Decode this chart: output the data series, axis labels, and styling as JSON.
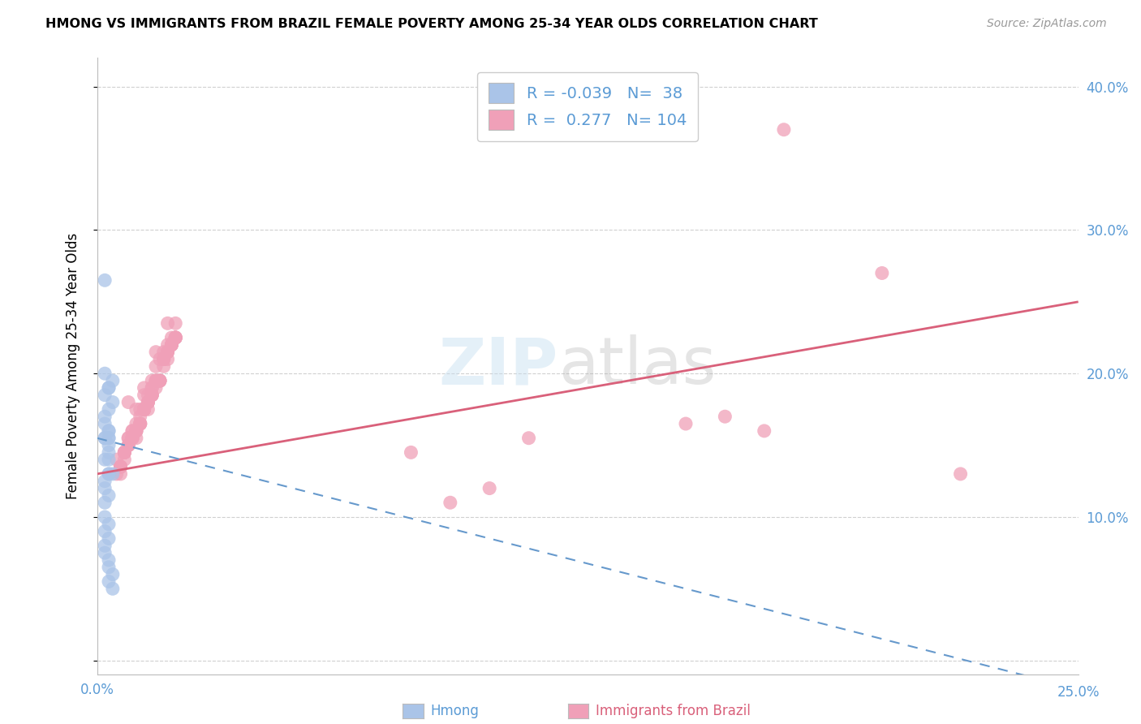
{
  "title": "HMONG VS IMMIGRANTS FROM BRAZIL FEMALE POVERTY AMONG 25-34 YEAR OLDS CORRELATION CHART",
  "source": "Source: ZipAtlas.com",
  "ylabel": "Female Poverty Among 25-34 Year Olds",
  "x_min": 0.0,
  "x_max": 0.25,
  "y_min": -0.01,
  "y_max": 0.42,
  "x_ticks": [
    0.0,
    0.05,
    0.1,
    0.15,
    0.2,
    0.25
  ],
  "y_ticks": [
    0.0,
    0.1,
    0.2,
    0.3,
    0.4
  ],
  "hmong_color": "#aac4e8",
  "brazil_color": "#f0a0b8",
  "hmong_line_color": "#6699cc",
  "brazil_line_color": "#d9607a",
  "R_hmong": -0.039,
  "N_hmong": 38,
  "R_brazil": 0.277,
  "N_brazil": 104,
  "watermark_zip": "ZIP",
  "watermark_atlas": "atlas",
  "tick_label_color": "#5b9bd5",
  "grid_color": "#d0d0d0",
  "hmong_x": [
    0.002,
    0.003,
    0.002,
    0.003,
    0.004,
    0.003,
    0.002,
    0.002,
    0.003,
    0.002,
    0.004,
    0.003,
    0.003,
    0.002,
    0.003,
    0.002,
    0.003,
    0.004,
    0.003,
    0.002,
    0.002,
    0.003,
    0.002,
    0.003,
    0.003,
    0.002,
    0.003,
    0.004,
    0.003,
    0.002,
    0.002,
    0.003,
    0.003,
    0.004,
    0.003,
    0.002,
    0.002,
    0.003
  ],
  "hmong_y": [
    0.265,
    0.19,
    0.2,
    0.15,
    0.18,
    0.16,
    0.155,
    0.14,
    0.155,
    0.17,
    0.13,
    0.16,
    0.155,
    0.185,
    0.145,
    0.155,
    0.19,
    0.195,
    0.175,
    0.165,
    0.125,
    0.115,
    0.1,
    0.13,
    0.085,
    0.075,
    0.095,
    0.06,
    0.055,
    0.08,
    0.09,
    0.065,
    0.07,
    0.05,
    0.14,
    0.12,
    0.11,
    0.13
  ],
  "brazil_x": [
    0.005,
    0.008,
    0.01,
    0.012,
    0.015,
    0.018,
    0.007,
    0.009,
    0.011,
    0.014,
    0.016,
    0.019,
    0.006,
    0.01,
    0.013,
    0.017,
    0.02,
    0.008,
    0.012,
    0.015,
    0.009,
    0.013,
    0.016,
    0.02,
    0.007,
    0.011,
    0.014,
    0.018,
    0.008,
    0.012,
    0.015,
    0.019,
    0.006,
    0.01,
    0.013,
    0.017,
    0.009,
    0.012,
    0.016,
    0.02,
    0.007,
    0.011,
    0.014,
    0.018,
    0.006,
    0.01,
    0.013,
    0.017,
    0.008,
    0.012,
    0.015,
    0.019,
    0.007,
    0.011,
    0.014,
    0.018,
    0.009,
    0.012,
    0.016,
    0.02,
    0.006,
    0.01,
    0.013,
    0.017,
    0.008,
    0.012,
    0.015,
    0.019,
    0.007,
    0.011,
    0.014,
    0.018,
    0.009,
    0.012,
    0.016,
    0.02,
    0.006,
    0.01,
    0.014,
    0.018,
    0.007,
    0.011,
    0.015,
    0.019,
    0.005,
    0.009,
    0.013,
    0.017,
    0.008,
    0.012,
    0.016,
    0.02,
    0.01,
    0.014,
    0.15,
    0.16,
    0.17,
    0.2,
    0.22,
    0.1,
    0.09,
    0.11,
    0.175,
    0.08
  ],
  "brazil_y": [
    0.14,
    0.18,
    0.175,
    0.19,
    0.215,
    0.235,
    0.145,
    0.16,
    0.175,
    0.195,
    0.21,
    0.225,
    0.135,
    0.165,
    0.185,
    0.215,
    0.235,
    0.155,
    0.185,
    0.205,
    0.16,
    0.18,
    0.195,
    0.225,
    0.145,
    0.17,
    0.19,
    0.215,
    0.155,
    0.175,
    0.195,
    0.22,
    0.135,
    0.16,
    0.18,
    0.21,
    0.155,
    0.175,
    0.195,
    0.225,
    0.14,
    0.165,
    0.185,
    0.215,
    0.13,
    0.155,
    0.175,
    0.205,
    0.15,
    0.175,
    0.195,
    0.22,
    0.145,
    0.165,
    0.185,
    0.21,
    0.155,
    0.175,
    0.195,
    0.225,
    0.135,
    0.16,
    0.18,
    0.21,
    0.15,
    0.175,
    0.195,
    0.22,
    0.145,
    0.165,
    0.185,
    0.215,
    0.155,
    0.175,
    0.195,
    0.225,
    0.135,
    0.16,
    0.19,
    0.22,
    0.145,
    0.165,
    0.19,
    0.22,
    0.13,
    0.155,
    0.18,
    0.21,
    0.15,
    0.175,
    0.195,
    0.225,
    0.16,
    0.185,
    0.165,
    0.17,
    0.16,
    0.27,
    0.13,
    0.12,
    0.11,
    0.155,
    0.37,
    0.145
  ]
}
